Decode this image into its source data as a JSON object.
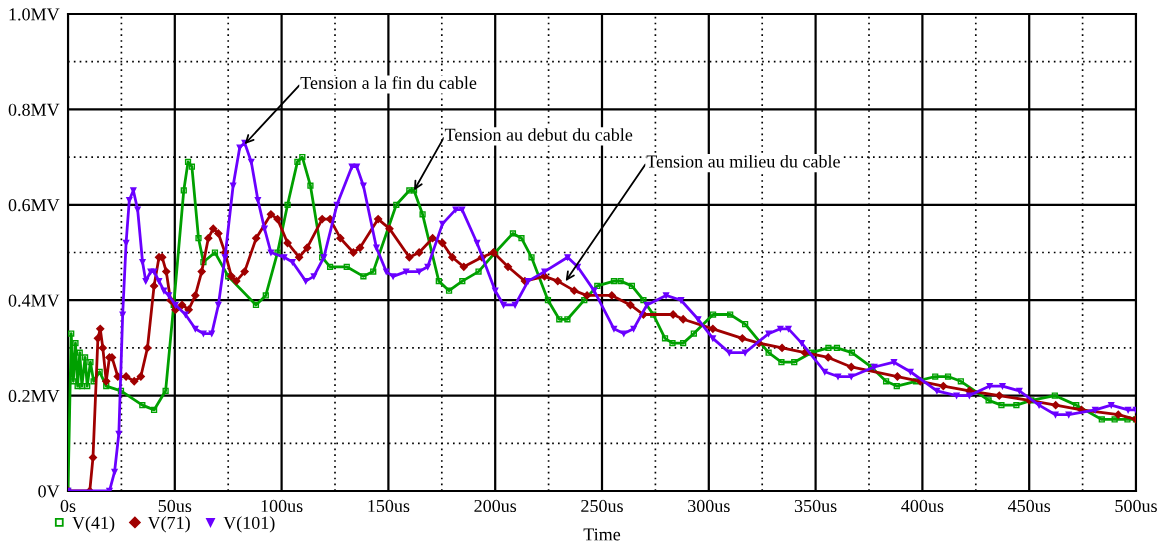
{
  "chart_data": {
    "type": "line",
    "xlabel": "Time",
    "xlim": [
      0,
      500
    ],
    "ylim": [
      0,
      1.0
    ],
    "xticks": [
      {
        "value": 0,
        "label": "0s"
      },
      {
        "value": 25,
        "label": null
      },
      {
        "value": 50,
        "label": "50us"
      },
      {
        "value": 75,
        "label": null
      },
      {
        "value": 100,
        "label": "100us"
      },
      {
        "value": 125,
        "label": null
      },
      {
        "value": 150,
        "label": "150us"
      },
      {
        "value": 175,
        "label": null
      },
      {
        "value": 200,
        "label": "200us"
      },
      {
        "value": 225,
        "label": null
      },
      {
        "value": 250,
        "label": "250us"
      },
      {
        "value": 275,
        "label": null
      },
      {
        "value": 300,
        "label": "300us"
      },
      {
        "value": 325,
        "label": null
      },
      {
        "value": 350,
        "label": "350us"
      },
      {
        "value": 375,
        "label": null
      },
      {
        "value": 400,
        "label": "400us"
      },
      {
        "value": 425,
        "label": null
      },
      {
        "value": 450,
        "label": "450us"
      },
      {
        "value": 475,
        "label": null
      },
      {
        "value": 500,
        "label": "500us"
      }
    ],
    "yticks": [
      {
        "value": 0,
        "label": "0V"
      },
      {
        "value": 0.1,
        "label": null
      },
      {
        "value": 0.2,
        "label": "0.2MV"
      },
      {
        "value": 0.3,
        "label": null
      },
      {
        "value": 0.4,
        "label": "0.4MV"
      },
      {
        "value": 0.5,
        "label": null
      },
      {
        "value": 0.6,
        "label": "0.6MV"
      },
      {
        "value": 0.7,
        "label": null
      },
      {
        "value": 0.8,
        "label": "0.8MV"
      },
      {
        "value": 0.9,
        "label": null
      },
      {
        "value": 1.0,
        "label": "1.0MV"
      }
    ],
    "grid": true,
    "legend": "bottom left",
    "line_style": "solid",
    "annotations": [
      {
        "text": "Tension a la fin du cable",
        "x": 82.7,
        "y": 0.727
      },
      {
        "text": "Tension au debut du cable",
        "x": 162,
        "y": 0.63
      },
      {
        "text": "Tension au milieu du cable",
        "x": 233,
        "y": 0.44
      }
    ],
    "series": [
      {
        "name": "V(41)",
        "color": "#00a000",
        "marker": "square",
        "x": [
          0,
          1.5,
          2.5,
          3.5,
          4.5,
          5.5,
          6.5,
          8,
          9,
          10.5,
          12,
          14.8,
          17.9,
          24.8,
          34.8,
          40.3,
          45.7,
          49.5,
          54.2,
          56.2,
          58,
          61.1,
          63.4,
          68.8,
          75,
          88,
          92.6,
          98.1,
          102.8,
          107.4,
          109.7,
          113.5,
          119,
          122.7,
          130.5,
          138.3,
          142.9,
          153.7,
          159.8,
          162,
          166,
          173.6,
          178.4,
          184.6,
          192.2,
          200,
          208.3,
          212.3,
          217,
          224.7,
          230,
          233.8,
          241.7,
          247.8,
          255.6,
          258.7,
          264,
          269.4,
          274,
          279.5,
          283,
          288,
          293,
          302,
          310,
          317,
          328,
          334,
          340,
          348,
          356,
          360,
          367,
          376,
          383,
          388,
          397,
          406,
          412,
          418,
          431,
          437,
          444,
          451,
          462,
          472,
          484,
          490,
          496,
          500
        ],
        "values": [
          0,
          0.33,
          0.23,
          0.31,
          0.22,
          0.29,
          0.22,
          0.28,
          0.22,
          0.27,
          0.23,
          0.25,
          0.22,
          0.21,
          0.18,
          0.17,
          0.21,
          0.39,
          0.63,
          0.69,
          0.68,
          0.53,
          0.48,
          0.5,
          0.45,
          0.39,
          0.41,
          0.5,
          0.6,
          0.69,
          0.7,
          0.64,
          0.49,
          0.47,
          0.47,
          0.45,
          0.46,
          0.6,
          0.63,
          0.63,
          0.58,
          0.44,
          0.42,
          0.44,
          0.46,
          0.5,
          0.54,
          0.53,
          0.49,
          0.4,
          0.36,
          0.36,
          0.4,
          0.43,
          0.44,
          0.44,
          0.43,
          0.4,
          0.37,
          0.32,
          0.31,
          0.31,
          0.33,
          0.37,
          0.37,
          0.35,
          0.29,
          0.27,
          0.27,
          0.29,
          0.3,
          0.3,
          0.29,
          0.26,
          0.23,
          0.22,
          0.23,
          0.24,
          0.24,
          0.23,
          0.19,
          0.18,
          0.18,
          0.19,
          0.2,
          0.18,
          0.15,
          0.15,
          0.15,
          0.15
        ]
      },
      {
        "name": "V(71)",
        "color": "#a00000",
        "marker": "diamond",
        "x": [
          0,
          10.2,
          11.7,
          14,
          15.1,
          16.3,
          17.9,
          19.4,
          20.6,
          23.3,
          27.2,
          31,
          34.1,
          37.2,
          40.3,
          42.6,
          44.1,
          46,
          48,
          50.3,
          53.4,
          56.5,
          59.6,
          62.6,
          65.7,
          68,
          70.4,
          73.5,
          76.5,
          78.8,
          82.7,
          88.1,
          95,
          98.1,
          102.8,
          108.2,
          112,
          119,
          122.7,
          127.5,
          133.6,
          136.7,
          145.2,
          150.5,
          159.8,
          164.4,
          170.7,
          175.3,
          179.9,
          185.3,
          193.8,
          199.2,
          206,
          213.9,
          223.1,
          229.3,
          237,
          243,
          254.6,
          263.3,
          269.4,
          283.3,
          288,
          301.9,
          315.7,
          323.5,
          334.3,
          345,
          355.9,
          366.7,
          388.3,
          399,
          409.8,
          422,
          436,
          450,
          462.4,
          474.5,
          491.7,
          500
        ],
        "values": [
          0,
          0,
          0.07,
          0.32,
          0.34,
          0.3,
          0.23,
          0.28,
          0.28,
          0.24,
          0.24,
          0.23,
          0.24,
          0.3,
          0.43,
          0.49,
          0.49,
          0.46,
          0.4,
          0.38,
          0.39,
          0.38,
          0.41,
          0.46,
          0.53,
          0.55,
          0.54,
          0.5,
          0.45,
          0.44,
          0.46,
          0.53,
          0.58,
          0.57,
          0.52,
          0.49,
          0.51,
          0.57,
          0.57,
          0.53,
          0.5,
          0.51,
          0.57,
          0.55,
          0.49,
          0.5,
          0.53,
          0.52,
          0.49,
          0.47,
          0.49,
          0.5,
          0.47,
          0.44,
          0.45,
          0.44,
          0.42,
          0.41,
          0.41,
          0.39,
          0.37,
          0.37,
          0.36,
          0.34,
          0.32,
          0.31,
          0.3,
          0.29,
          0.28,
          0.26,
          0.24,
          0.23,
          0.22,
          0.21,
          0.2,
          0.19,
          0.18,
          0.17,
          0.16,
          0.15
        ]
      },
      {
        "name": "V(101)",
        "color": "#6a00ff",
        "marker": "triangle",
        "x": [
          0,
          19.4,
          21.8,
          23.8,
          25.6,
          27.2,
          28.7,
          30.6,
          32.6,
          34.9,
          36.4,
          38.7,
          40.3,
          42.6,
          44.9,
          47.2,
          50.3,
          55,
          59.6,
          63.4,
          67.3,
          70.4,
          73.5,
          77.3,
          80.4,
          82.7,
          85.8,
          88.9,
          92,
          95,
          101.2,
          105.1,
          111.3,
          115.1,
          119.8,
          125.9,
          132.9,
          135.2,
          138.3,
          144.4,
          149,
          152.2,
          158.3,
          164.4,
          168.4,
          175.3,
          181.5,
          184.5,
          191.5,
          200,
          203.9,
          209.3,
          215.4,
          223.1,
          233.9,
          238.6,
          246.3,
          255.6,
          260.2,
          264.8,
          271,
          280,
          287,
          295,
          301.9,
          309.6,
          317,
          328,
          333.5,
          337.3,
          343.5,
          354.3,
          360.5,
          366.7,
          377.5,
          386.7,
          394.4,
          406.8,
          416,
          422,
          431.5,
          437.5,
          445.4,
          454.6,
          462.3,
          468.5,
          480.9,
          488.4,
          496.3,
          500
        ],
        "values": [
          0,
          0,
          0.04,
          0.12,
          0.37,
          0.52,
          0.61,
          0.63,
          0.59,
          0.48,
          0.44,
          0.46,
          0.46,
          0.44,
          0.42,
          0.41,
          0.39,
          0.37,
          0.34,
          0.33,
          0.33,
          0.39,
          0.49,
          0.64,
          0.72,
          0.73,
          0.69,
          0.61,
          0.55,
          0.5,
          0.49,
          0.48,
          0.44,
          0.45,
          0.49,
          0.6,
          0.68,
          0.68,
          0.64,
          0.51,
          0.46,
          0.45,
          0.46,
          0.46,
          0.47,
          0.56,
          0.59,
          0.59,
          0.52,
          0.42,
          0.39,
          0.39,
          0.44,
          0.46,
          0.49,
          0.47,
          0.42,
          0.34,
          0.33,
          0.34,
          0.39,
          0.41,
          0.4,
          0.36,
          0.32,
          0.29,
          0.29,
          0.33,
          0.34,
          0.34,
          0.31,
          0.25,
          0.24,
          0.24,
          0.26,
          0.27,
          0.25,
          0.21,
          0.2,
          0.2,
          0.22,
          0.22,
          0.21,
          0.18,
          0.16,
          0.16,
          0.17,
          0.18,
          0.17,
          0.17
        ]
      }
    ]
  }
}
